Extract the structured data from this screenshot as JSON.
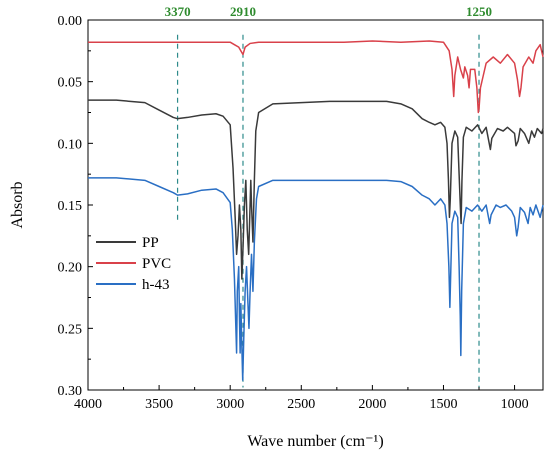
{
  "chart_data": {
    "type": "line",
    "title": "",
    "xlabel": "Wave number (cm⁻¹)",
    "ylabel": "Absorb",
    "xlim": [
      4000,
      800
    ],
    "ylim": [
      0.3,
      0.0
    ],
    "x_reversed": true,
    "y_reversed": true,
    "grid": false,
    "legend_position": "left-middle",
    "xticks": [
      4000,
      3500,
      3000,
      2500,
      2000,
      1500,
      1000
    ],
    "xtick_labels": [
      "4000",
      "3500",
      "3000",
      "2500",
      "2000",
      "1500",
      "1000"
    ],
    "yticks": [
      0.0,
      0.05,
      0.1,
      0.15,
      0.2,
      0.25,
      0.3
    ],
    "ytick_labels": [
      "0.00",
      "0.05",
      "0.10",
      "0.15",
      "0.20",
      "0.25",
      "0.30"
    ],
    "series": [
      {
        "name": "PP",
        "color": "#3a3a3a",
        "points": [
          [
            4000,
            0.065
          ],
          [
            3800,
            0.065
          ],
          [
            3600,
            0.067
          ],
          [
            3500,
            0.073
          ],
          [
            3400,
            0.079
          ],
          [
            3370,
            0.08
          ],
          [
            3300,
            0.079
          ],
          [
            3200,
            0.077
          ],
          [
            3100,
            0.076
          ],
          [
            3050,
            0.078
          ],
          [
            3000,
            0.085
          ],
          [
            2980,
            0.12
          ],
          [
            2965,
            0.16
          ],
          [
            2955,
            0.19
          ],
          [
            2945,
            0.175
          ],
          [
            2935,
            0.15
          ],
          [
            2925,
            0.17
          ],
          [
            2918,
            0.21
          ],
          [
            2910,
            0.185
          ],
          [
            2900,
            0.15
          ],
          [
            2890,
            0.13
          ],
          [
            2880,
            0.17
          ],
          [
            2870,
            0.19
          ],
          [
            2865,
            0.17
          ],
          [
            2855,
            0.13
          ],
          [
            2850,
            0.15
          ],
          [
            2840,
            0.18
          ],
          [
            2830,
            0.13
          ],
          [
            2820,
            0.09
          ],
          [
            2800,
            0.075
          ],
          [
            2700,
            0.068
          ],
          [
            2500,
            0.067
          ],
          [
            2300,
            0.066
          ],
          [
            2100,
            0.066
          ],
          [
            1900,
            0.066
          ],
          [
            1800,
            0.068
          ],
          [
            1720,
            0.072
          ],
          [
            1650,
            0.08
          ],
          [
            1600,
            0.083
          ],
          [
            1560,
            0.085
          ],
          [
            1520,
            0.083
          ],
          [
            1490,
            0.087
          ],
          [
            1475,
            0.1
          ],
          [
            1465,
            0.13
          ],
          [
            1458,
            0.16
          ],
          [
            1452,
            0.145
          ],
          [
            1440,
            0.1
          ],
          [
            1420,
            0.09
          ],
          [
            1400,
            0.095
          ],
          [
            1390,
            0.125
          ],
          [
            1380,
            0.155
          ],
          [
            1376,
            0.165
          ],
          [
            1370,
            0.13
          ],
          [
            1360,
            0.095
          ],
          [
            1340,
            0.087
          ],
          [
            1300,
            0.09
          ],
          [
            1260,
            0.085
          ],
          [
            1230,
            0.092
          ],
          [
            1200,
            0.087
          ],
          [
            1170,
            0.105
          ],
          [
            1160,
            0.096
          ],
          [
            1120,
            0.088
          ],
          [
            1080,
            0.09
          ],
          [
            1050,
            0.087
          ],
          [
            1000,
            0.092
          ],
          [
            990,
            0.102
          ],
          [
            975,
            0.098
          ],
          [
            960,
            0.088
          ],
          [
            930,
            0.092
          ],
          [
            900,
            0.1
          ],
          [
            880,
            0.09
          ],
          [
            860,
            0.095
          ],
          [
            840,
            0.088
          ],
          [
            810,
            0.092
          ],
          [
            800,
            0.088
          ]
        ]
      },
      {
        "name": "PVC",
        "color": "#d9414a",
        "points": [
          [
            4000,
            0.018
          ],
          [
            3800,
            0.018
          ],
          [
            3600,
            0.018
          ],
          [
            3400,
            0.018
          ],
          [
            3200,
            0.018
          ],
          [
            3000,
            0.018
          ],
          [
            2970,
            0.02
          ],
          [
            2940,
            0.022
          ],
          [
            2925,
            0.025
          ],
          [
            2910,
            0.028
          ],
          [
            2895,
            0.022
          ],
          [
            2860,
            0.019
          ],
          [
            2800,
            0.018
          ],
          [
            2500,
            0.018
          ],
          [
            2200,
            0.018
          ],
          [
            2000,
            0.017
          ],
          [
            1800,
            0.018
          ],
          [
            1600,
            0.017
          ],
          [
            1500,
            0.018
          ],
          [
            1460,
            0.025
          ],
          [
            1440,
            0.04
          ],
          [
            1428,
            0.062
          ],
          [
            1420,
            0.045
          ],
          [
            1400,
            0.03
          ],
          [
            1380,
            0.04
          ],
          [
            1360,
            0.047
          ],
          [
            1350,
            0.038
          ],
          [
            1330,
            0.045
          ],
          [
            1320,
            0.055
          ],
          [
            1310,
            0.04
          ],
          [
            1280,
            0.04
          ],
          [
            1265,
            0.055
          ],
          [
            1255,
            0.075
          ],
          [
            1250,
            0.072
          ],
          [
            1240,
            0.055
          ],
          [
            1220,
            0.045
          ],
          [
            1200,
            0.035
          ],
          [
            1150,
            0.03
          ],
          [
            1100,
            0.035
          ],
          [
            1050,
            0.028
          ],
          [
            1000,
            0.035
          ],
          [
            980,
            0.048
          ],
          [
            965,
            0.062
          ],
          [
            955,
            0.055
          ],
          [
            940,
            0.038
          ],
          [
            900,
            0.03
          ],
          [
            870,
            0.035
          ],
          [
            850,
            0.025
          ],
          [
            820,
            0.02
          ],
          [
            800,
            0.03
          ]
        ]
      },
      {
        "name": "h-43",
        "color": "#2a6fc4",
        "points": [
          [
            4000,
            0.128
          ],
          [
            3800,
            0.128
          ],
          [
            3600,
            0.13
          ],
          [
            3500,
            0.135
          ],
          [
            3400,
            0.14
          ],
          [
            3370,
            0.142
          ],
          [
            3300,
            0.141
          ],
          [
            3200,
            0.138
          ],
          [
            3100,
            0.137
          ],
          [
            3050,
            0.14
          ],
          [
            3000,
            0.148
          ],
          [
            2985,
            0.17
          ],
          [
            2970,
            0.21
          ],
          [
            2960,
            0.25
          ],
          [
            2955,
            0.27
          ],
          [
            2950,
            0.22
          ],
          [
            2940,
            0.2
          ],
          [
            2935,
            0.24
          ],
          [
            2930,
            0.27
          ],
          [
            2925,
            0.23
          ],
          [
            2918,
            0.265
          ],
          [
            2912,
            0.292
          ],
          [
            2905,
            0.26
          ],
          [
            2895,
            0.22
          ],
          [
            2885,
            0.2
          ],
          [
            2875,
            0.23
          ],
          [
            2868,
            0.25
          ],
          [
            2860,
            0.22
          ],
          [
            2850,
            0.19
          ],
          [
            2840,
            0.22
          ],
          [
            2830,
            0.18
          ],
          [
            2815,
            0.145
          ],
          [
            2800,
            0.135
          ],
          [
            2700,
            0.13
          ],
          [
            2500,
            0.13
          ],
          [
            2300,
            0.13
          ],
          [
            2100,
            0.13
          ],
          [
            1900,
            0.13
          ],
          [
            1800,
            0.131
          ],
          [
            1720,
            0.135
          ],
          [
            1650,
            0.142
          ],
          [
            1600,
            0.145
          ],
          [
            1560,
            0.15
          ],
          [
            1520,
            0.145
          ],
          [
            1490,
            0.15
          ],
          [
            1475,
            0.165
          ],
          [
            1462,
            0.2
          ],
          [
            1455,
            0.233
          ],
          [
            1450,
            0.21
          ],
          [
            1440,
            0.165
          ],
          [
            1420,
            0.155
          ],
          [
            1400,
            0.16
          ],
          [
            1390,
            0.2
          ],
          [
            1382,
            0.24
          ],
          [
            1378,
            0.272
          ],
          [
            1372,
            0.22
          ],
          [
            1360,
            0.165
          ],
          [
            1340,
            0.152
          ],
          [
            1300,
            0.155
          ],
          [
            1260,
            0.15
          ],
          [
            1230,
            0.155
          ],
          [
            1200,
            0.15
          ],
          [
            1175,
            0.165
          ],
          [
            1165,
            0.158
          ],
          [
            1130,
            0.15
          ],
          [
            1100,
            0.152
          ],
          [
            1060,
            0.15
          ],
          [
            1020,
            0.155
          ],
          [
            1000,
            0.16
          ],
          [
            985,
            0.175
          ],
          [
            975,
            0.168
          ],
          [
            960,
            0.152
          ],
          [
            930,
            0.156
          ],
          [
            905,
            0.165
          ],
          [
            890,
            0.152
          ],
          [
            870,
            0.158
          ],
          [
            850,
            0.15
          ],
          [
            820,
            0.16
          ],
          [
            800,
            0.15
          ]
        ]
      }
    ],
    "annotations": [
      {
        "x": 3370,
        "label": "3370",
        "color": "#2e8b2e",
        "line_color": "#2e8b8b",
        "y_top": 0.012,
        "y_bottom": 0.163
      },
      {
        "x": 2910,
        "label": "2910",
        "color": "#2e8b2e",
        "line_color": "#2e8b8b",
        "y_top": 0.012,
        "y_bottom": 0.298
      },
      {
        "x": 1250,
        "label": "1250",
        "color": "#2e8b2e",
        "line_color": "#2e8b8b",
        "y_top": 0.012,
        "y_bottom": 0.298
      }
    ]
  }
}
